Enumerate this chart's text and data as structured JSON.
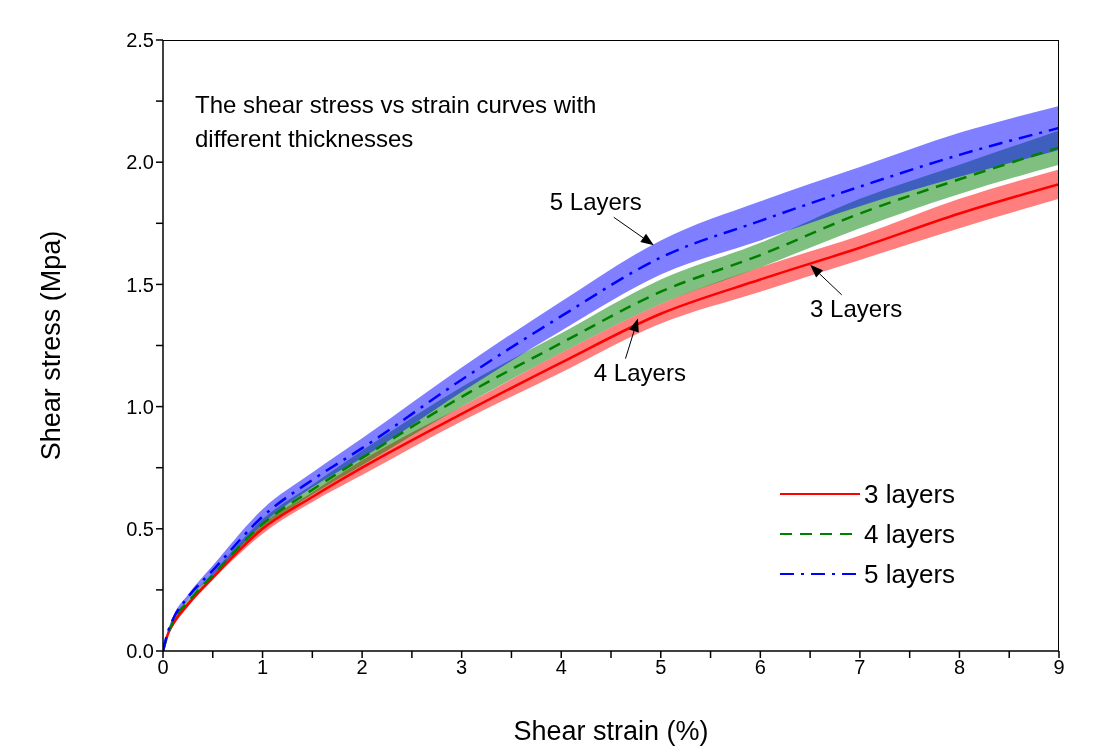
{
  "chart_data": {
    "type": "line",
    "title": "The shear stress vs strain curves with different thicknesses",
    "xlabel": "Shear strain (%)",
    "ylabel": "Shear stress (Mpa)",
    "x": [
      0,
      0.05,
      0.1,
      0.25,
      0.5,
      1,
      1.5,
      2,
      3,
      4,
      5,
      6,
      7,
      8,
      9
    ],
    "series": [
      {
        "name": "3 layers",
        "color": "#ff0000",
        "line_style": "solid",
        "values": [
          0,
          0.07,
          0.11,
          0.19,
          0.3,
          0.5,
          0.63,
          0.75,
          0.97,
          1.18,
          1.38,
          1.52,
          1.65,
          1.79,
          1.91
        ],
        "lower": [
          0,
          0.065,
          0.1,
          0.18,
          0.29,
          0.48,
          0.61,
          0.72,
          0.94,
          1.14,
          1.34,
          1.47,
          1.6,
          1.73,
          1.85
        ],
        "upper": [
          0,
          0.075,
          0.12,
          0.2,
          0.31,
          0.52,
          0.65,
          0.78,
          1.0,
          1.22,
          1.42,
          1.57,
          1.7,
          1.85,
          1.97
        ]
      },
      {
        "name": "4 layers",
        "color": "#008000",
        "line_style": "dashed",
        "values": [
          0,
          0.07,
          0.12,
          0.2,
          0.31,
          0.52,
          0.66,
          0.79,
          1.04,
          1.26,
          1.47,
          1.62,
          1.79,
          1.93,
          2.06
        ],
        "lower": [
          0,
          0.065,
          0.11,
          0.19,
          0.3,
          0.5,
          0.64,
          0.76,
          1.0,
          1.22,
          1.42,
          1.57,
          1.73,
          1.87,
          1.99
        ],
        "upper": [
          0,
          0.075,
          0.13,
          0.21,
          0.32,
          0.54,
          0.68,
          0.82,
          1.08,
          1.3,
          1.52,
          1.67,
          1.85,
          1.99,
          2.13
        ]
      },
      {
        "name": "5 layers",
        "color": "#0000ff",
        "line_style": "dashdot",
        "values": [
          0,
          0.08,
          0.13,
          0.22,
          0.33,
          0.55,
          0.7,
          0.83,
          1.11,
          1.37,
          1.61,
          1.76,
          1.9,
          2.03,
          2.14
        ],
        "lower": [
          0,
          0.075,
          0.12,
          0.21,
          0.31,
          0.52,
          0.67,
          0.79,
          1.06,
          1.31,
          1.54,
          1.68,
          1.82,
          1.94,
          2.05
        ],
        "upper": [
          0,
          0.085,
          0.14,
          0.23,
          0.35,
          0.58,
          0.73,
          0.87,
          1.16,
          1.43,
          1.68,
          1.84,
          1.98,
          2.12,
          2.23
        ]
      }
    ],
    "xlim": [
      0,
      9
    ],
    "xticks": [
      0,
      {
        "value": 0.5,
        "label": null
      },
      1,
      {
        "value": 1.5,
        "label": null
      },
      2,
      {
        "value": 2.5,
        "label": null
      },
      3,
      {
        "value": 3.5,
        "label": null
      },
      4,
      {
        "value": 4.5,
        "label": null
      },
      5,
      {
        "value": 5.5,
        "label": null
      },
      6,
      {
        "value": 6.5,
        "label": null
      },
      7,
      {
        "value": 7.5,
        "label": null
      },
      8,
      {
        "value": 8.5,
        "label": null
      },
      9
    ],
    "ylim": [
      0,
      2.5
    ],
    "yticks": [
      {
        "value": 0,
        "label": "0.0"
      },
      {
        "value": 0.25,
        "label": null
      },
      {
        "value": 0.5,
        "label": "0.5"
      },
      {
        "value": 0.75,
        "label": null
      },
      {
        "value": 1,
        "label": "1.0"
      },
      {
        "value": 1.25,
        "label": null
      },
      {
        "value": 1.5,
        "label": "1.5"
      },
      {
        "value": 1.75,
        "label": null
      },
      {
        "value": 2,
        "label": "2.0"
      },
      {
        "value": 2.25,
        "label": null
      },
      {
        "value": 2.5,
        "label": "2.5"
      }
    ],
    "grid": false,
    "legend": "bottom right",
    "marker": "none",
    "annotations": [
      {
        "text": "5 Layers",
        "x": 4.93,
        "y": 1.66
      },
      {
        "text": "3 Layers",
        "x": 6.5,
        "y": 1.58
      },
      {
        "text": "4 Layers",
        "x": 4.77,
        "y": 1.36
      }
    ]
  }
}
